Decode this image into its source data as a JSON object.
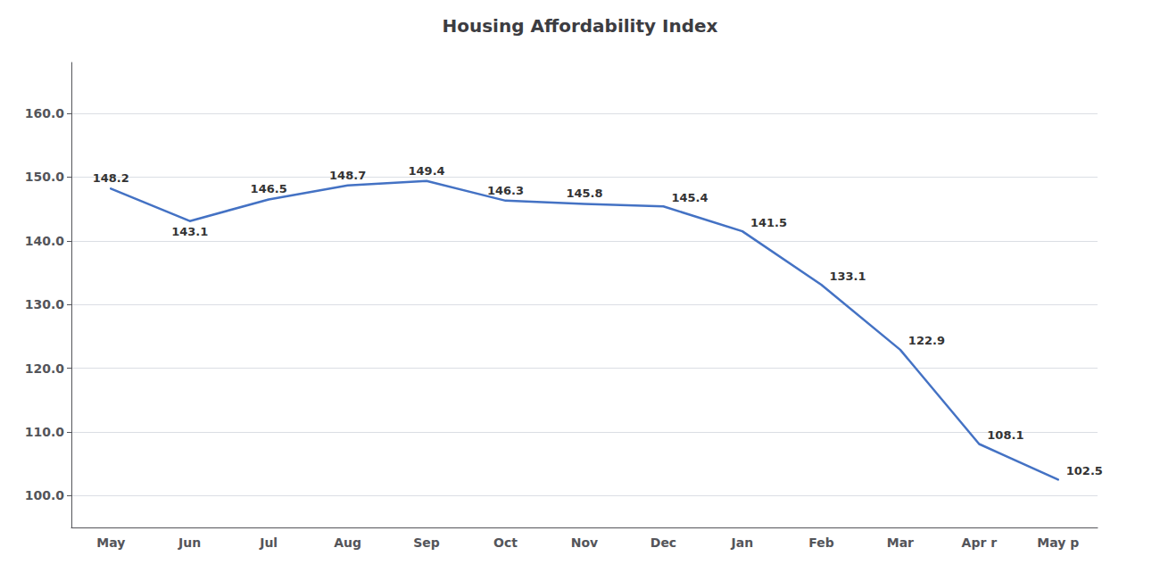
{
  "chart_data": {
    "type": "line",
    "title": "Housing Affordability Index",
    "categories": [
      "May",
      "Jun",
      "Jul",
      "Aug",
      "Sep",
      "Oct",
      "Nov",
      "Dec",
      "Jan",
      "Feb",
      "Mar",
      "Apr r",
      "May p"
    ],
    "values": [
      148.2,
      143.1,
      146.5,
      148.7,
      149.4,
      146.3,
      145.8,
      145.4,
      141.5,
      133.1,
      122.9,
      108.1,
      102.5
    ],
    "color": "#4472C4",
    "ylim": [
      95,
      168
    ],
    "yticks": [
      {
        "value": 100,
        "label": "100.0"
      },
      {
        "value": 110,
        "label": "110.0"
      },
      {
        "value": 120,
        "label": "120.0"
      },
      {
        "value": 130,
        "label": "130.0"
      },
      {
        "value": 140,
        "label": "140.0"
      },
      {
        "value": 150,
        "label": "150.0"
      },
      {
        "value": 160,
        "label": "160.0"
      }
    ],
    "grid": true,
    "data_labels": true
  }
}
